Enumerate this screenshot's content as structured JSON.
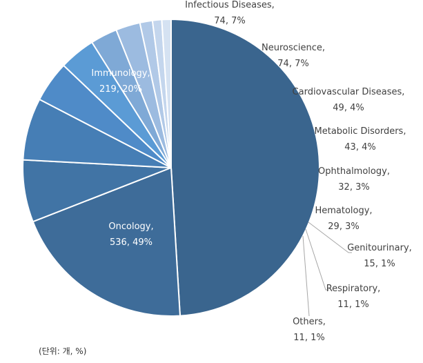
{
  "chart_data": {
    "type": "pie",
    "title": "",
    "unit_note": "(단위: 개, %)",
    "slices": [
      {
        "name": "Oncology",
        "value": 536,
        "percent": "49%",
        "color": "#3a658e"
      },
      {
        "name": "Immunology",
        "value": 219,
        "percent": "20%",
        "color": "#3e6c99"
      },
      {
        "name": "Infectious Diseases",
        "value": 74,
        "percent": "7%",
        "color": "#4174a5"
      },
      {
        "name": "Neuroscience",
        "value": 74,
        "percent": "7%",
        "color": "#467eb5"
      },
      {
        "name": "Cardiovascular Diseases",
        "value": 49,
        "percent": "4%",
        "color": "#4f8bc8"
      },
      {
        "name": "Metabolic Disorders",
        "value": 43,
        "percent": "4%",
        "color": "#5b9bd5"
      },
      {
        "name": "Ophthalmology",
        "value": 32,
        "percent": "3%",
        "color": "#7fa9d6"
      },
      {
        "name": "Hematology",
        "value": 29,
        "percent": "3%",
        "color": "#9cbbe0"
      },
      {
        "name": "Genitourinary",
        "value": 15,
        "percent": "1%",
        "color": "#b1c9e7"
      },
      {
        "name": "Respiratory",
        "value": 11,
        "percent": "1%",
        "color": "#c4d6ed"
      },
      {
        "name": "Others",
        "value": 11,
        "percent": "1%",
        "color": "#d5e2f2"
      }
    ]
  }
}
